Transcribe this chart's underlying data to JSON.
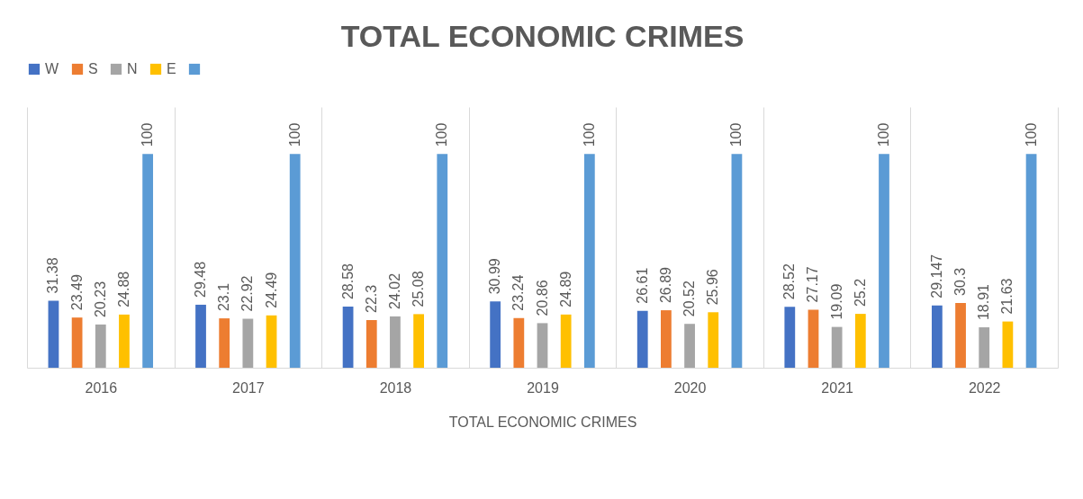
{
  "chart_data": {
    "type": "bar",
    "title": "TOTAL ECONOMIC CRIMES",
    "xlabel": "TOTAL ECONOMIC CRIMES",
    "categories": [
      "2016",
      "2017",
      "2018",
      "2019",
      "2020",
      "2021",
      "2022"
    ],
    "series": [
      {
        "name": "W",
        "color": "#4472c4",
        "values": [
          31.38,
          29.48,
          28.58,
          30.99,
          26.61,
          28.52,
          29.147
        ]
      },
      {
        "name": "S",
        "color": "#ed7d31",
        "values": [
          23.49,
          23.1,
          22.3,
          23.24,
          26.89,
          27.17,
          30.3
        ]
      },
      {
        "name": "N",
        "color": "#a5a5a5",
        "values": [
          20.23,
          22.92,
          24.02,
          20.86,
          20.52,
          19.09,
          18.91
        ]
      },
      {
        "name": "E",
        "color": "#ffc000",
        "values": [
          24.88,
          24.49,
          25.08,
          24.89,
          25.96,
          25.2,
          21.63
        ]
      },
      {
        "color": "#5b9bd5",
        "values": [
          100,
          100,
          100,
          100,
          100,
          100,
          100
        ]
      }
    ],
    "data_labels": true,
    "grid": "x",
    "legend": "top"
  }
}
